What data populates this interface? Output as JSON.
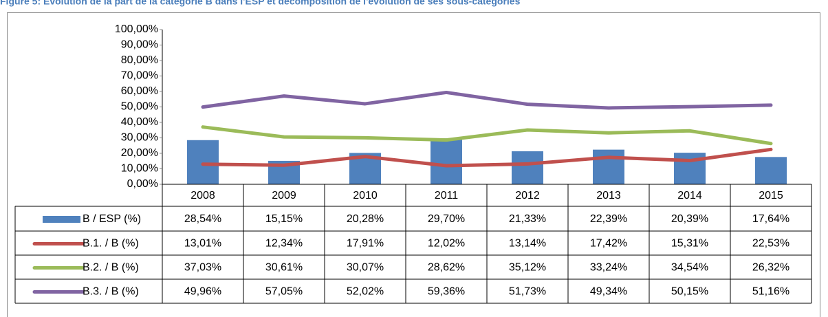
{
  "chart_data": {
    "type": "bar",
    "title": "Figure 5: Evolution de la part de la catégorie B dans l'ESP et décomposition de l'évolution de ses sous-catégories",
    "categories": [
      "2008",
      "2009",
      "2010",
      "2011",
      "2012",
      "2013",
      "2014",
      "2015"
    ],
    "series": [
      {
        "name": "B / ESP (%)",
        "type": "bar",
        "color": "#4f81bd",
        "values": [
          28.54,
          15.15,
          20.28,
          29.7,
          21.33,
          22.39,
          20.39,
          17.64
        ],
        "value_labels": [
          "28,54%",
          "15,15%",
          "20,28%",
          "29,70%",
          "21,33%",
          "22,39%",
          "20,39%",
          "17,64%"
        ]
      },
      {
        "name": "B.1. / B (%)",
        "type": "line",
        "color": "#c0504d",
        "values": [
          13.01,
          12.34,
          17.91,
          12.02,
          13.14,
          17.42,
          15.31,
          22.53
        ],
        "value_labels": [
          "13,01%",
          "12,34%",
          "17,91%",
          "12,02%",
          "13,14%",
          "17,42%",
          "15,31%",
          "22,53%"
        ]
      },
      {
        "name": "B.2. / B (%)",
        "type": "line",
        "color": "#9bbb59",
        "values": [
          37.03,
          30.61,
          30.07,
          28.62,
          35.12,
          33.24,
          34.54,
          26.32
        ],
        "value_labels": [
          "37,03%",
          "30,61%",
          "30,07%",
          "28,62%",
          "35,12%",
          "33,24%",
          "34,54%",
          "26,32%"
        ]
      },
      {
        "name": "B.3. / B (%)",
        "type": "line",
        "color": "#8064a2",
        "values": [
          49.96,
          57.05,
          52.02,
          59.36,
          51.73,
          49.34,
          50.15,
          51.16
        ],
        "value_labels": [
          "49,96%",
          "57,05%",
          "52,02%",
          "59,36%",
          "51,73%",
          "49,34%",
          "50,15%",
          "51,16%"
        ]
      }
    ],
    "ylim": [
      0,
      100
    ],
    "yticks": [
      {
        "value": 0,
        "label": "0,00%"
      },
      {
        "value": 10,
        "label": "10,00%"
      },
      {
        "value": 20,
        "label": "20,00%"
      },
      {
        "value": 30,
        "label": "30,00%"
      },
      {
        "value": 40,
        "label": "40,00%"
      },
      {
        "value": 50,
        "label": "50,00%"
      },
      {
        "value": 60,
        "label": "60,00%"
      },
      {
        "value": 70,
        "label": "70,00%"
      },
      {
        "value": 80,
        "label": "80,00%"
      },
      {
        "value": 90,
        "label": "90,00%"
      },
      {
        "value": 100,
        "label": "100,00%"
      }
    ],
    "grid": false
  }
}
